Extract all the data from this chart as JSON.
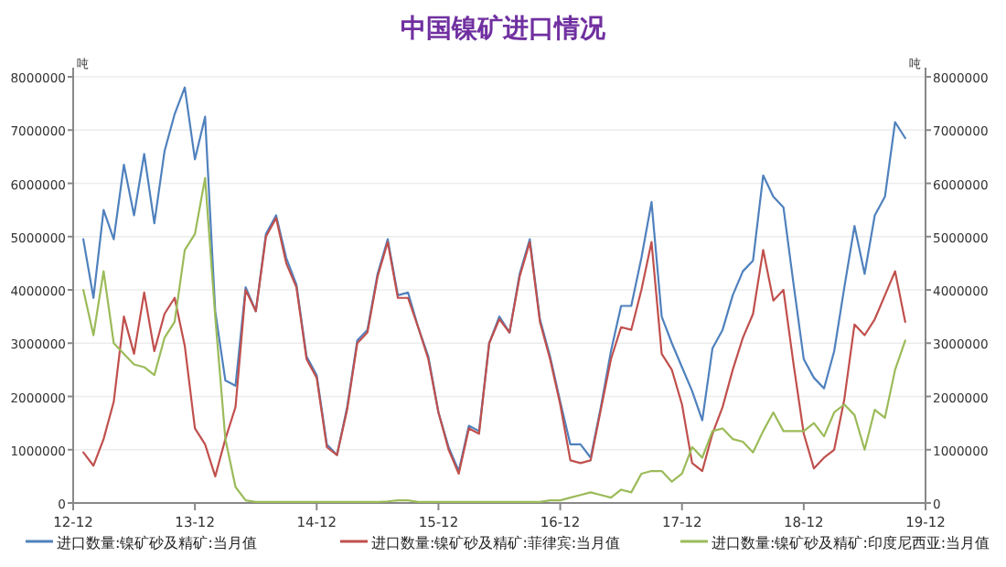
{
  "chart_data": {
    "type": "line",
    "title": "中国镍矿进口情况",
    "ylabel": "吨",
    "y2label": "吨",
    "x": [
      "2013-01",
      "2013-02",
      "2013-03",
      "2013-04",
      "2013-05",
      "2013-06",
      "2013-07",
      "2013-08",
      "2013-09",
      "2013-10",
      "2013-11",
      "2013-12",
      "2014-01",
      "2014-02",
      "2014-03",
      "2014-04",
      "2014-05",
      "2014-06",
      "2014-07",
      "2014-08",
      "2014-09",
      "2014-10",
      "2014-11",
      "2014-12",
      "2015-01",
      "2015-02",
      "2015-03",
      "2015-04",
      "2015-05",
      "2015-06",
      "2015-07",
      "2015-08",
      "2015-09",
      "2015-10",
      "2015-11",
      "2015-12",
      "2016-01",
      "2016-02",
      "2016-03",
      "2016-04",
      "2016-05",
      "2016-06",
      "2016-07",
      "2016-08",
      "2016-09",
      "2016-10",
      "2016-11",
      "2016-12",
      "2017-01",
      "2017-02",
      "2017-03",
      "2017-04",
      "2017-05",
      "2017-06",
      "2017-07",
      "2017-08",
      "2017-09",
      "2017-10",
      "2017-11",
      "2017-12",
      "2018-01",
      "2018-02",
      "2018-03",
      "2018-04",
      "2018-05",
      "2018-06",
      "2018-07",
      "2018-08",
      "2018-09",
      "2018-10",
      "2018-11",
      "2018-12",
      "2019-01",
      "2019-02",
      "2019-03",
      "2019-04",
      "2019-05",
      "2019-06",
      "2019-07",
      "2019-08",
      "2019-09",
      "2019-10"
    ],
    "series": [
      {
        "name": "进口数量:镍矿砂及精矿:当月值",
        "color": "#4f81bd",
        "values": [
          4950000,
          3850000,
          5500000,
          4950000,
          6350000,
          5400000,
          6550000,
          5250000,
          6600000,
          7300000,
          7800000,
          6450000,
          7250000,
          3600000,
          2300000,
          2200000,
          4050000,
          3600000,
          5050000,
          5400000,
          4600000,
          4100000,
          2750000,
          2400000,
          1100000,
          900000,
          1800000,
          3050000,
          3250000,
          4300000,
          4950000,
          3900000,
          3950000,
          3300000,
          2750000,
          1700000,
          1050000,
          600000,
          1450000,
          1350000,
          3000000,
          3500000,
          3200000,
          4300000,
          4950000,
          3450000,
          2750000,
          1900000,
          1100000,
          1100000,
          850000,
          1800000,
          2850000,
          3700000,
          3700000,
          4600000,
          5650000,
          3500000,
          3000000,
          2550000,
          2100000,
          1550000,
          2900000,
          3250000,
          3900000,
          4350000,
          4550000,
          6150000,
          5750000,
          5550000,
          4100000,
          2700000,
          2350000,
          2150000,
          2850000,
          4050000,
          5200000,
          4300000,
          5400000,
          5750000,
          7150000,
          6850000
        ]
      },
      {
        "name": "进口数量:镍矿砂及精矿:菲律宾:当月值",
        "color": "#c0504d",
        "values": [
          950000,
          700000,
          1200000,
          1900000,
          3500000,
          2800000,
          3950000,
          2850000,
          3550000,
          3850000,
          2950000,
          1400000,
          1100000,
          500000,
          1200000,
          1800000,
          4000000,
          3600000,
          5000000,
          5350000,
          4500000,
          4050000,
          2700000,
          2350000,
          1050000,
          900000,
          1750000,
          3000000,
          3200000,
          4250000,
          4900000,
          3850000,
          3850000,
          3300000,
          2700000,
          1700000,
          1000000,
          550000,
          1400000,
          1300000,
          3000000,
          3450000,
          3200000,
          4250000,
          4900000,
          3400000,
          2700000,
          1850000,
          800000,
          750000,
          800000,
          1750000,
          2700000,
          3300000,
          3250000,
          4000000,
          4900000,
          2800000,
          2500000,
          1850000,
          750000,
          600000,
          1300000,
          1800000,
          2500000,
          3100000,
          3550000,
          4750000,
          3800000,
          4000000,
          2600000,
          1300000,
          650000,
          850000,
          1000000,
          1950000,
          3350000,
          3150000,
          3450000,
          3900000,
          4350000,
          3400000
        ]
      },
      {
        "name": "进口数量:镍矿砂及精矿:印度尼西亚:当月值",
        "color": "#9bbb59",
        "values": [
          4000000,
          3150000,
          4350000,
          3000000,
          2800000,
          2600000,
          2550000,
          2400000,
          3100000,
          3400000,
          4750000,
          5050000,
          6100000,
          3500000,
          1200000,
          300000,
          50000,
          20000,
          20000,
          20000,
          20000,
          20000,
          20000,
          20000,
          20000,
          20000,
          20000,
          20000,
          20000,
          20000,
          30000,
          50000,
          50000,
          20000,
          20000,
          20000,
          20000,
          20000,
          20000,
          20000,
          20000,
          20000,
          20000,
          20000,
          20000,
          20000,
          50000,
          50000,
          100000,
          150000,
          200000,
          150000,
          100000,
          250000,
          200000,
          550000,
          600000,
          600000,
          400000,
          550000,
          1050000,
          850000,
          1350000,
          1400000,
          1200000,
          1150000,
          950000,
          1350000,
          1700000,
          1350000,
          1350000,
          1350000,
          1500000,
          1250000,
          1700000,
          1850000,
          1650000,
          1000000,
          1750000,
          1600000,
          2500000,
          3050000
        ]
      }
    ],
    "xlim": [
      "2012-12",
      "2019-12"
    ],
    "xticks": [
      {
        "value": "2012-12",
        "label": "12-12"
      },
      {
        "value": "2013-12",
        "label": "13-12"
      },
      {
        "value": "2014-12",
        "label": "14-12"
      },
      {
        "value": "2015-12",
        "label": "15-12"
      },
      {
        "value": "2016-12",
        "label": "16-12"
      },
      {
        "value": "2017-12",
        "label": "17-12"
      },
      {
        "value": "2018-12",
        "label": "18-12"
      },
      {
        "value": "2019-12",
        "label": "19-12"
      }
    ],
    "ylim": [
      0,
      8000000
    ],
    "yticks": [
      0,
      1000000,
      2000000,
      3000000,
      4000000,
      5000000,
      6000000,
      7000000,
      8000000
    ],
    "y2lim": [
      0,
      8000000
    ],
    "y2ticks": [
      0,
      1000000,
      2000000,
      3000000,
      4000000,
      5000000,
      6000000,
      7000000,
      8000000
    ],
    "grid": "y",
    "legend": "bottom",
    "marker": "none",
    "line_style": "solid"
  }
}
